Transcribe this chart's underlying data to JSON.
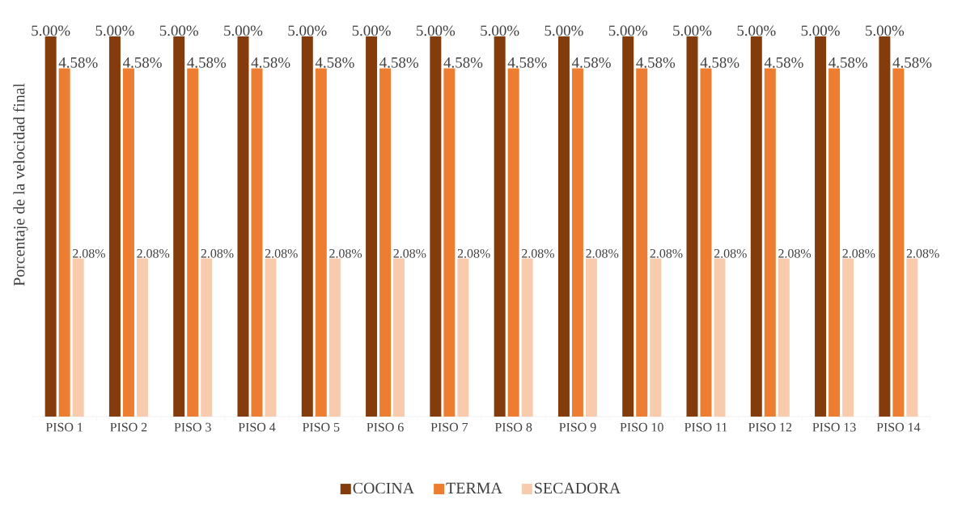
{
  "chart_data": {
    "type": "bar",
    "ylabel": "Porcentaje de la velocidad final",
    "categories": [
      "PISO 1",
      "PISO 2",
      "PISO 3",
      "PISO 4",
      "PISO 5",
      "PISO 6",
      "PISO 7",
      "PISO 8",
      "PISO 9",
      "PISO 10",
      "PISO 11",
      "PISO 12",
      "PISO 13",
      "PISO 14"
    ],
    "series": [
      {
        "name": "COCINA",
        "color": "#843c0c",
        "values": [
          5.0,
          5.0,
          5.0,
          5.0,
          5.0,
          5.0,
          5.0,
          5.0,
          5.0,
          5.0,
          5.0,
          5.0,
          5.0,
          5.0
        ],
        "value_labels": [
          "5.00%",
          "5.00%",
          "5.00%",
          "5.00%",
          "5.00%",
          "5.00%",
          "5.00%",
          "5.00%",
          "5.00%",
          "5.00%",
          "5.00%",
          "5.00%",
          "5.00%",
          "5.00%"
        ]
      },
      {
        "name": "TERMA",
        "color": "#ed7d31",
        "values": [
          4.58,
          4.58,
          4.58,
          4.58,
          4.58,
          4.58,
          4.58,
          4.58,
          4.58,
          4.58,
          4.58,
          4.58,
          4.58,
          4.58
        ],
        "value_labels": [
          "4.58%",
          "4.58%",
          "4.58%",
          "4.58%",
          "4.58%",
          "4.58%",
          "4.58%",
          "4.58%",
          "4.58%",
          "4.58%",
          "4.58%",
          "4.58%",
          "4.58%",
          "4.58%"
        ]
      },
      {
        "name": "SECADORA",
        "color": "#f8cbad",
        "values": [
          2.08,
          2.08,
          2.08,
          2.08,
          2.08,
          2.08,
          2.08,
          2.08,
          2.08,
          2.08,
          2.08,
          2.08,
          2.08,
          2.08
        ],
        "value_labels": [
          "2.08%",
          "2.08%",
          "2.08%",
          "2.08%",
          "2.08%",
          "2.08%",
          "2.08%",
          "2.08%",
          "2.08%",
          "2.08%",
          "2.08%",
          "2.08%",
          "2.08%",
          "2.08%"
        ]
      }
    ],
    "ylim": [
      0,
      5
    ],
    "tick_labels": "x",
    "legend": "bottom"
  }
}
